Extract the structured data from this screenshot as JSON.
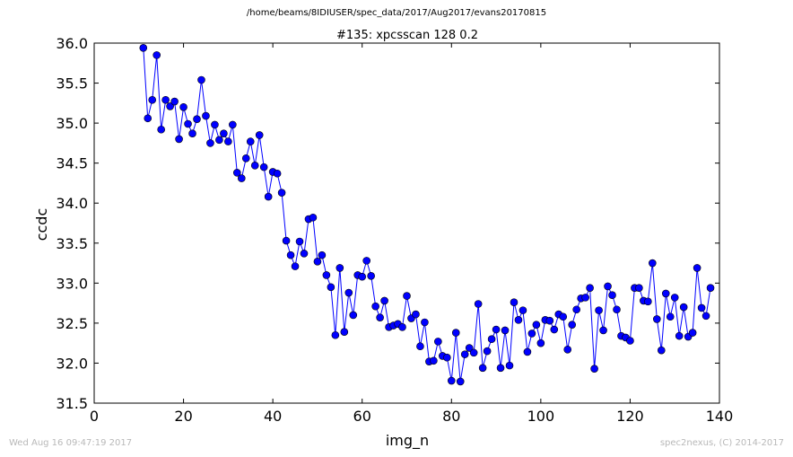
{
  "header": {
    "path": "/home/beams/8IDIUSER/spec_data/2017/Aug2017/evans20170815"
  },
  "footer": {
    "timestamp": "Wed Aug 16 09:47:19 2017",
    "credit": "spec2nexus, (C) 2014-2017"
  },
  "colors": {
    "series": "#0000ff",
    "background": "#ffffff"
  },
  "chart_data": {
    "type": "line",
    "title": "#135: xpcsscan 128 0.2",
    "xlabel": "img_n",
    "ylabel": "ccdc",
    "xlim": [
      0,
      140
    ],
    "ylim": [
      31.5,
      36.0
    ],
    "xticks": [
      0,
      20,
      40,
      60,
      80,
      100,
      120,
      140
    ],
    "yticks": [
      31.5,
      32.0,
      32.5,
      33.0,
      33.5,
      34.0,
      34.5,
      35.0,
      35.5,
      36.0
    ],
    "ytick_labels": [
      "31.5",
      "32.0",
      "32.5",
      "33.0",
      "33.5",
      "34.0",
      "34.5",
      "35.0",
      "35.5",
      "36.0"
    ],
    "grid": false,
    "marker": "circle",
    "x": [
      11,
      12,
      13,
      14,
      15,
      16,
      17,
      18,
      19,
      20,
      21,
      22,
      23,
      24,
      25,
      26,
      27,
      28,
      29,
      30,
      31,
      32,
      33,
      34,
      35,
      36,
      37,
      38,
      39,
      40,
      41,
      42,
      43,
      44,
      45,
      46,
      47,
      48,
      49,
      50,
      51,
      52,
      53,
      54,
      55,
      56,
      57,
      58,
      59,
      60,
      61,
      62,
      63,
      64,
      65,
      66,
      67,
      68,
      69,
      70,
      71,
      72,
      73,
      74,
      75,
      76,
      77,
      78,
      79,
      80,
      81,
      82,
      83,
      84,
      85,
      86,
      87,
      88,
      89,
      90,
      91,
      92,
      93,
      94,
      95,
      96,
      97,
      98,
      99,
      100,
      101,
      102,
      103,
      104,
      105,
      106,
      107,
      108,
      109,
      110,
      111,
      112,
      113,
      114,
      115,
      116,
      117,
      118,
      119,
      120,
      121,
      122,
      123,
      124,
      125,
      126,
      127,
      128,
      129,
      130,
      131,
      132,
      133,
      134,
      135,
      136,
      137,
      138
    ],
    "y": [
      35.94,
      35.06,
      35.29,
      35.85,
      34.92,
      35.29,
      35.21,
      35.27,
      34.8,
      35.2,
      34.99,
      34.87,
      35.05,
      35.54,
      35.09,
      34.75,
      34.98,
      34.79,
      34.87,
      34.77,
      34.98,
      34.38,
      34.31,
      34.56,
      34.77,
      34.47,
      34.85,
      34.45,
      34.08,
      34.39,
      34.37,
      34.13,
      33.53,
      33.35,
      33.21,
      33.52,
      33.37,
      33.8,
      33.82,
      33.27,
      33.35,
      33.1,
      32.95,
      32.35,
      33.19,
      32.39,
      32.88,
      32.6,
      33.1,
      33.08,
      33.28,
      33.09,
      32.71,
      32.57,
      32.78,
      32.45,
      32.47,
      32.49,
      32.45,
      32.84,
      32.56,
      32.61,
      32.21,
      32.51,
      32.02,
      32.03,
      32.27,
      32.09,
      32.07,
      31.78,
      32.38,
      31.77,
      32.11,
      32.19,
      32.13,
      32.74,
      31.94,
      32.15,
      32.3,
      32.42,
      31.94,
      32.41,
      31.97,
      32.76,
      32.54,
      32.66,
      32.14,
      32.37,
      32.48,
      32.25,
      32.54,
      32.53,
      32.42,
      32.61,
      32.58,
      32.17,
      32.48,
      32.67,
      32.81,
      32.82,
      32.94,
      31.93,
      32.66,
      32.41,
      32.96,
      32.85,
      32.67,
      32.34,
      32.32,
      32.28,
      32.94,
      32.94,
      32.78,
      32.77,
      33.25,
      32.55,
      32.16,
      32.87,
      32.58,
      32.82,
      32.34,
      32.7,
      32.33,
      32.38,
      33.19,
      32.69,
      32.59,
      32.94
    ]
  }
}
